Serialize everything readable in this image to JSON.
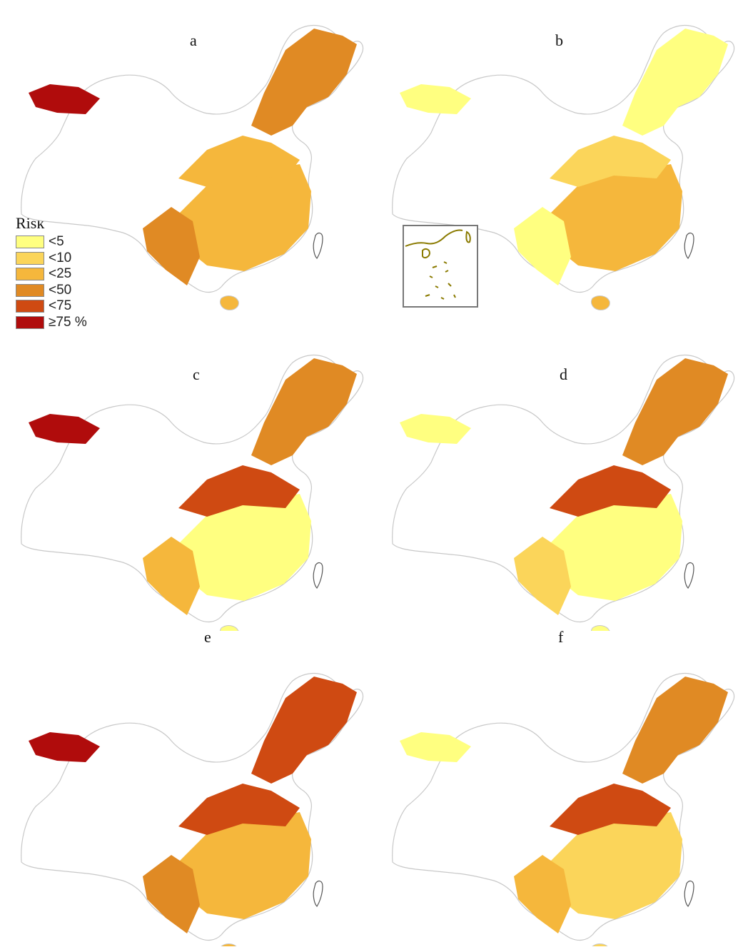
{
  "legend": {
    "title": "Risk",
    "classes": [
      {
        "label": "<5",
        "color": "#ffff80"
      },
      {
        "label": "<10",
        "color": "#fbd55a"
      },
      {
        "label": "<25",
        "color": "#f5b73c"
      },
      {
        "label": "<50",
        "color": "#e08a24"
      },
      {
        "label": "<75",
        "color": "#cf4a12"
      },
      {
        "label": "≥75 %",
        "color": "#b00c0c"
      }
    ]
  },
  "panels": [
    {
      "label": "a",
      "palette": [
        "#e08a24",
        "#f5b73c",
        "#f5b73c",
        "#e08a24",
        "#b00c0c"
      ]
    },
    {
      "label": "b",
      "palette": [
        "#ffff80",
        "#f5b73c",
        "#fbd55a",
        "#ffff80",
        "#ffff80"
      ]
    },
    {
      "label": "c",
      "palette": [
        "#e08a24",
        "#ffff80",
        "#cf4a12",
        "#f5b73c",
        "#b00c0c"
      ]
    },
    {
      "label": "d",
      "palette": [
        "#e08a24",
        "#ffff80",
        "#cf4a12",
        "#fbd55a",
        "#ffff80"
      ]
    },
    {
      "label": "e",
      "palette": [
        "#cf4a12",
        "#f5b73c",
        "#cf4a12",
        "#e08a24",
        "#b00c0c"
      ]
    },
    {
      "label": "f",
      "palette": [
        "#e08a24",
        "#fbd55a",
        "#cf4a12",
        "#f5b73c",
        "#ffff80"
      ]
    }
  ],
  "colors": {
    "outline": "#c8c8c8",
    "taiwan": "#555555",
    "inset_line": "#8a7a00"
  }
}
